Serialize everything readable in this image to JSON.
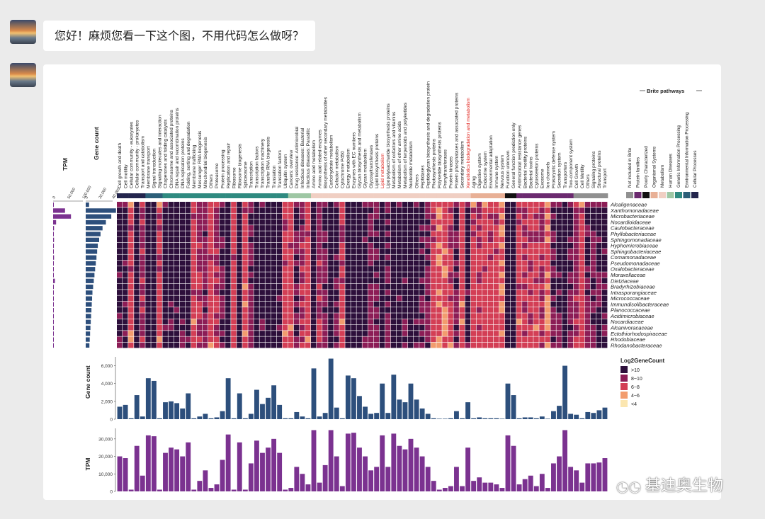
{
  "chat": {
    "question": "您好！麻烦您看一下这个图，不用代码怎么做呀？"
  },
  "figure": {
    "side_axes": {
      "tpm_title": "TPM",
      "tpm_ticks": [
        "0",
        "50,000",
        "100,000"
      ],
      "gene_title": "Gene count",
      "gene_ticks": [
        "0",
        "20,000",
        "40,000"
      ]
    },
    "pathways": [
      {
        "name": "Cell growth and death",
        "cat": "cp",
        "tpm": 20000,
        "gene": 1400,
        "red": false
      },
      {
        "name": "Cell motility",
        "cat": "cp",
        "tpm": 19000,
        "gene": 1600,
        "red": false
      },
      {
        "name": "Cellular community - eukaryotes",
        "cat": "cp",
        "tpm": 1000,
        "gene": 100,
        "red": false
      },
      {
        "name": "Cellular community - prokaryotes",
        "cat": "cp",
        "tpm": 26000,
        "gene": 2700,
        "red": false
      },
      {
        "name": "Transport and catabolism",
        "cat": "cp",
        "tpm": 9000,
        "gene": 300,
        "red": false
      },
      {
        "name": "Membrane transport",
        "cat": "ep",
        "tpm": 32000,
        "gene": 4600,
        "red": false
      },
      {
        "name": "Signal transduction",
        "cat": "ep",
        "tpm": 31500,
        "gene": 4300,
        "red": false
      },
      {
        "name": "Signaling molecules and interaction",
        "cat": "ep",
        "tpm": 1000,
        "gene": 100,
        "red": false
      },
      {
        "name": "Chaperones and folding catalysts",
        "cat": "gip",
        "tpm": 22000,
        "gene": 1900,
        "red": false
      },
      {
        "name": "Chromosome and associated proteins",
        "cat": "gip",
        "tpm": 25000,
        "gene": 2000,
        "red": false
      },
      {
        "name": "DNA repair and recombination proteins",
        "cat": "gip",
        "tpm": 24000,
        "gene": 1800,
        "red": false
      },
      {
        "name": "DNA replication proteins",
        "cat": "gip",
        "tpm": 20000,
        "gene": 1200,
        "red": false
      },
      {
        "name": "Folding, sorting and degradation",
        "cat": "gip",
        "tpm": 28000,
        "gene": 2900,
        "red": false
      },
      {
        "name": "Membrane trafficking",
        "cat": "gip",
        "tpm": 1000,
        "gene": 100,
        "red": false
      },
      {
        "name": "Messenger RNA biogenesis",
        "cat": "gip",
        "tpm": 6000,
        "gene": 300,
        "red": false
      },
      {
        "name": "Mitochondrial biogenesis",
        "cat": "gip",
        "tpm": 12000,
        "gene": 600,
        "red": false
      },
      {
        "name": "Others",
        "cat": "gip",
        "tpm": 2000,
        "gene": 100,
        "red": false
      },
      {
        "name": "Proteasome",
        "cat": "gip",
        "tpm": 4000,
        "gene": 200,
        "red": false
      },
      {
        "name": "Protein processing",
        "cat": "gip",
        "tpm": 18000,
        "gene": 900,
        "red": false
      },
      {
        "name": "Replication and repair",
        "cat": "gip",
        "tpm": 32500,
        "gene": 4600,
        "red": false
      },
      {
        "name": "Ribosome",
        "cat": "gip",
        "tpm": 1000,
        "gene": 100,
        "red": false
      },
      {
        "name": "Ribosome biogenesis",
        "cat": "gip",
        "tpm": 28000,
        "gene": 2900,
        "red": false
      },
      {
        "name": "Spliceosome",
        "cat": "gip",
        "tpm": 1000,
        "gene": 100,
        "red": false
      },
      {
        "name": "Transcription",
        "cat": "gip",
        "tpm": 16000,
        "gene": 600,
        "red": false
      },
      {
        "name": "Transcription factors",
        "cat": "gip",
        "tpm": 29000,
        "gene": 3300,
        "red": false
      },
      {
        "name": "Transcription machinery",
        "cat": "gip",
        "tpm": 22000,
        "gene": 1700,
        "red": false
      },
      {
        "name": "Transfer RNA biogenesis",
        "cat": "gip",
        "tpm": 25000,
        "gene": 2400,
        "red": false
      },
      {
        "name": "Translation",
        "cat": "gip",
        "tpm": 30000,
        "gene": 3800,
        "red": false
      },
      {
        "name": "Translation factors",
        "cat": "gip",
        "tpm": 22000,
        "gene": 1600,
        "red": false
      },
      {
        "name": "Ubiquitin system",
        "cat": "gip",
        "tpm": 1000,
        "gene": 100,
        "red": false
      },
      {
        "name": "Cancers: overview",
        "cat": "hd",
        "tpm": 2000,
        "gene": 100,
        "red": false
      },
      {
        "name": "Drug resistance: Antimicrobial",
        "cat": "hd",
        "tpm": 14000,
        "gene": 800,
        "red": false
      },
      {
        "name": "Infectious diseases: Bacterial",
        "cat": "hd",
        "tpm": 10000,
        "gene": 300,
        "red": false
      },
      {
        "name": "Infectious diseases: Parasitic",
        "cat": "hd",
        "tpm": 4000,
        "gene": 100,
        "red": false
      },
      {
        "name": "Amino acid metabolism",
        "cat": "m",
        "tpm": 35000,
        "gene": 5700,
        "red": false
      },
      {
        "name": "Amino acid related enzymes",
        "cat": "m",
        "tpm": 5000,
        "gene": 300,
        "red": false
      },
      {
        "name": "Biosynthesis of other secondary metabolites",
        "cat": "m",
        "tpm": 15000,
        "gene": 700,
        "red": false
      },
      {
        "name": "Carbohydrate metabolism",
        "cat": "m",
        "tpm": 35000,
        "gene": 6800,
        "red": false
      },
      {
        "name": "Cofactor metabolism",
        "cat": "m",
        "tpm": 20000,
        "gene": 1300,
        "red": false
      },
      {
        "name": "Cytochrome P450",
        "cat": "m",
        "tpm": 3000,
        "gene": 100,
        "red": false
      },
      {
        "name": "Energy metabolism",
        "cat": "m",
        "tpm": 33000,
        "gene": 4900,
        "red": false
      },
      {
        "name": "Enzymes with EC numbers",
        "cat": "m",
        "tpm": 33500,
        "gene": 4600,
        "red": false
      },
      {
        "name": "Glycan biosynthesis and metabolism",
        "cat": "m",
        "tpm": 25000,
        "gene": 2600,
        "red": false
      },
      {
        "name": "Glycan metabolism",
        "cat": "m",
        "tpm": 20000,
        "gene": 1400,
        "red": false
      },
      {
        "name": "Glycosyltransferases",
        "cat": "m",
        "tpm": 12000,
        "gene": 600,
        "red": false
      },
      {
        "name": "Lipid biosynthesis proteins",
        "cat": "m",
        "tpm": 14000,
        "gene": 700,
        "red": false
      },
      {
        "name": "Lipid metabolism",
        "cat": "m",
        "tpm": 32000,
        "gene": 4000,
        "red": true
      },
      {
        "name": "Lipopolysaccharide biosynthesis proteins",
        "cat": "m",
        "tpm": 14000,
        "gene": 700,
        "red": false
      },
      {
        "name": "Metabolism of cofactors and vitamins",
        "cat": "m",
        "tpm": 33000,
        "gene": 5000,
        "red": false
      },
      {
        "name": "Metabolism of other amino acids",
        "cat": "m",
        "tpm": 26000,
        "gene": 2200,
        "red": false
      },
      {
        "name": "Metabolism of terpenoids and polyketides",
        "cat": "m",
        "tpm": 24000,
        "gene": 1900,
        "red": false
      },
      {
        "name": "Nucleotide metabolism",
        "cat": "m",
        "tpm": 30000,
        "gene": 4000,
        "red": false
      },
      {
        "name": "Others",
        "cat": "m",
        "tpm": 25000,
        "gene": 2200,
        "red": false
      },
      {
        "name": "Peptidases",
        "cat": "m",
        "tpm": 20000,
        "gene": 1200,
        "red": false
      },
      {
        "name": "Peptidoglycan biosynthesis and degradation protein",
        "cat": "m",
        "tpm": 14000,
        "gene": 600,
        "red": false
      },
      {
        "name": "Photosynthesis proteins",
        "cat": "m",
        "tpm": 6000,
        "gene": 100,
        "red": false
      },
      {
        "name": "Polyketide biosynthesis proteins",
        "cat": "m",
        "tpm": 1000,
        "gene": 50,
        "red": false
      },
      {
        "name": "Prenyltransferases",
        "cat": "m",
        "tpm": 2000,
        "gene": 50,
        "red": false
      },
      {
        "name": "Protein kinases",
        "cat": "m",
        "tpm": 3000,
        "gene": 100,
        "red": false
      },
      {
        "name": "Protein phosphatases and associated proteins",
        "cat": "m",
        "tpm": 14000,
        "gene": 900,
        "red": false
      },
      {
        "name": "Secondary metabolism",
        "cat": "m",
        "tpm": 3000,
        "gene": 100,
        "red": false
      },
      {
        "name": "Xenobiotics biodegradation and metabolism",
        "cat": "m",
        "tpm": 25000,
        "gene": 1900,
        "red": true
      },
      {
        "name": "Aging",
        "cat": "os",
        "tpm": 6000,
        "gene": 100,
        "red": false
      },
      {
        "name": "Digestive system",
        "cat": "os",
        "tpm": 8000,
        "gene": 200,
        "red": false
      },
      {
        "name": "Endocrine system",
        "cat": "os",
        "tpm": 5000,
        "gene": 100,
        "red": false
      },
      {
        "name": "Environmental adaptation",
        "cat": "os",
        "tpm": 5000,
        "gene": 100,
        "red": false
      },
      {
        "name": "Immune system",
        "cat": "os",
        "tpm": 4000,
        "gene": 100,
        "red": false
      },
      {
        "name": "Nervous system",
        "cat": "os",
        "tpm": 2000,
        "gene": 50,
        "red": false
      },
      {
        "name": "Function unknown",
        "cat": "pc",
        "tpm": 32000,
        "gene": 4000,
        "red": false
      },
      {
        "name": "General function prediction only",
        "cat": "pc",
        "tpm": 26000,
        "gene": 2700,
        "red": false
      },
      {
        "name": "Antimicrobial resistance genes",
        "cat": "pf",
        "tpm": 4000,
        "gene": 100,
        "red": false
      },
      {
        "name": "Bacterial motility proteins",
        "cat": "pf",
        "tpm": 7000,
        "gene": 200,
        "red": false
      },
      {
        "name": "Bacterial toxins",
        "cat": "pf",
        "tpm": 9000,
        "gene": 200,
        "red": false
      },
      {
        "name": "Cytoskeleton proteins",
        "cat": "pf",
        "tpm": 3000,
        "gene": 100,
        "red": false
      },
      {
        "name": "Exosome",
        "cat": "pf",
        "tpm": 10000,
        "gene": 300,
        "red": false
      },
      {
        "name": "Ion channels",
        "cat": "pf",
        "tpm": 2000,
        "gene": 50,
        "red": false
      },
      {
        "name": "Prokaryotic defense system",
        "cat": "pf",
        "tpm": 16000,
        "gene": 900,
        "red": false
      },
      {
        "name": "Secretion system",
        "cat": "pf",
        "tpm": 20000,
        "gene": 1500,
        "red": false
      },
      {
        "name": "Transporters",
        "cat": "pf",
        "tpm": 35000,
        "gene": 6000,
        "red": false
      },
      {
        "name": "Two-component system",
        "cat": "pf",
        "tpm": 14000,
        "gene": 600,
        "red": false
      },
      {
        "name": "Cell Growth",
        "cat": "ni",
        "tpm": 12000,
        "gene": 500,
        "red": false
      },
      {
        "name": "Cell Motility",
        "cat": "ni",
        "tpm": 5000,
        "gene": 100,
        "red": false
      },
      {
        "name": "Others",
        "cat": "ni",
        "tpm": 16000,
        "gene": 800,
        "red": false
      },
      {
        "name": "Signaling proteins",
        "cat": "ni",
        "tpm": 16000,
        "gene": 700,
        "red": false
      },
      {
        "name": "Structural proteins",
        "cat": "ni",
        "tpm": 16500,
        "gene": 1000,
        "red": false
      },
      {
        "name": "Transport",
        "cat": "ni",
        "tpm": 19000,
        "gene": 1300,
        "red": false
      }
    ],
    "families": [
      {
        "name": "Alcaligenaceae",
        "tpm": 2000,
        "gene": 5000
      },
      {
        "name": "Xanthomonadaceae",
        "tpm": 40000,
        "gene": 45000
      },
      {
        "name": "Microbacteriaceae",
        "tpm": 60000,
        "gene": 38000
      },
      {
        "name": "Nocardioidaceae",
        "tpm": 10000,
        "gene": 30000
      },
      {
        "name": "Caulobacteraceae",
        "tpm": 3000,
        "gene": 25000
      },
      {
        "name": "Phyllobacteriaceae",
        "tpm": 2000,
        "gene": 22000
      },
      {
        "name": "Sphingomonadaceae",
        "tpm": 3000,
        "gene": 20000
      },
      {
        "name": "Hyphomicrobiaceae",
        "tpm": 2500,
        "gene": 18000
      },
      {
        "name": "Sphingobacteriaceae",
        "tpm": 2000,
        "gene": 17000
      },
      {
        "name": "Comamonadaceae",
        "tpm": 3000,
        "gene": 16000
      },
      {
        "name": "Pseudomonadaceae",
        "tpm": 2000,
        "gene": 15000
      },
      {
        "name": "Oxalobacteraceae",
        "tpm": 1500,
        "gene": 14000
      },
      {
        "name": "Moraxellaceae",
        "tpm": 1500,
        "gene": 13000
      },
      {
        "name": "Dietziaceae",
        "tpm": 6000,
        "gene": 12000
      },
      {
        "name": "Bradyrhizobiaceae",
        "tpm": 1500,
        "gene": 11000
      },
      {
        "name": "Intrasporangiaceae",
        "tpm": 1000,
        "gene": 10000
      },
      {
        "name": "Micrococcaceae",
        "tpm": 1000,
        "gene": 9500
      },
      {
        "name": "Immundisolibacteraceae",
        "tpm": 1000,
        "gene": 9000
      },
      {
        "name": "Planococcaceae",
        "tpm": 1000,
        "gene": 8500
      },
      {
        "name": "Acidimicrobiaceae",
        "tpm": 1000,
        "gene": 8000
      },
      {
        "name": "Nocardiaceae",
        "tpm": 1000,
        "gene": 7500
      },
      {
        "name": "Alcanivoracaceae",
        "tpm": 1000,
        "gene": 7000
      },
      {
        "name": "Ectothiorhodospiraceae",
        "tpm": 1000,
        "gene": 6500
      },
      {
        "name": "Rhodobiaceae",
        "tpm": 1000,
        "gene": 6000
      },
      {
        "name": "Rhodanobacteraceae",
        "tpm": 1000,
        "gene": 5500
      }
    ],
    "categories": [
      {
        "key": "ni",
        "label": "Not included in Brite",
        "color": "#909090"
      },
      {
        "key": "pf",
        "label": "Protein families",
        "color": "#6b2a6f"
      },
      {
        "key": "pc",
        "label": "Poorly Characterized",
        "color": "#111111"
      },
      {
        "key": "os",
        "label": "Organismal Systems",
        "color": "#e8b096"
      },
      {
        "key": "m",
        "label": "Metabolism",
        "color": "#f0cfc3"
      },
      {
        "key": "hd",
        "label": "Human Diseases",
        "color": "#9ec7a4"
      },
      {
        "key": "gip",
        "label": "Genetic Information Processing",
        "color": "#2f8a80"
      },
      {
        "key": "ep",
        "label": "Environmental Information Processing",
        "color": "#2c5f78"
      },
      {
        "key": "cp",
        "label": "Cellular Processes",
        "color": "#23254d"
      }
    ],
    "legend_title": "Brite pathways",
    "heat_legend": {
      "title": "Log2GeneCount",
      "items": [
        {
          "label": ">10",
          "color": "#2d0f3b"
        },
        {
          "label": "8~10",
          "color": "#8c1d56"
        },
        {
          "label": "6~8",
          "color": "#d33e55"
        },
        {
          "label": "4~6",
          "color": "#f29c6e"
        },
        {
          "label": "<4",
          "color": "#fbe6b0"
        }
      ]
    },
    "gene_panel": {
      "title": "Gene count",
      "ticks": [
        "0",
        "2,000",
        "4,000",
        "6,000"
      ]
    },
    "tpm_panel": {
      "title": "TPM",
      "ticks": [
        "0",
        "10,000",
        "20,000",
        "30,000"
      ]
    },
    "colors": {
      "gene_bar": "#2d4f7c",
      "tpm_bar": "#7b3290",
      "side_tpm": "#7b3290",
      "side_gene": "#2d4f7c"
    },
    "chart_data": [
      {
        "type": "bar",
        "title": "Gene count",
        "xlabel": "",
        "ylabel": "Gene count",
        "ylim": [
          0,
          7000
        ],
        "categories_ref": "pathways"
      },
      {
        "type": "bar",
        "title": "TPM",
        "xlabel": "",
        "ylabel": "TPM",
        "ylim": [
          0,
          36000
        ],
        "categories_ref": "pathways"
      },
      {
        "type": "heatmap",
        "title": "Log2GeneCount",
        "rows_ref": "families",
        "cols_ref": "pathways"
      }
    ]
  },
  "watermark": {
    "text": "基迪奥生物",
    "icon": "wechat-icon"
  }
}
